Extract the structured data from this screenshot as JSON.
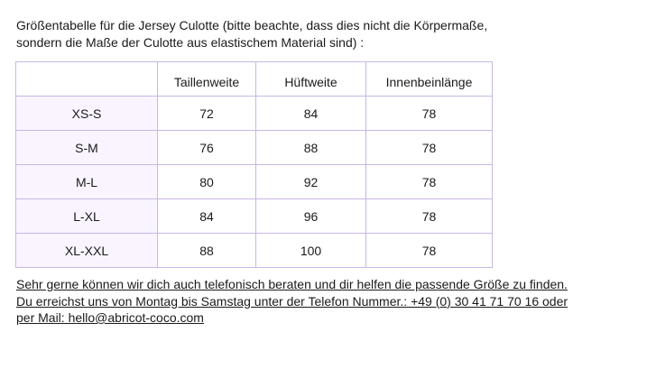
{
  "intro": {
    "line1": "Größentabelle für die Jersey Culotte  (bitte beachte, dass dies nicht die Körpermaße,",
    "line2": "sondern die Maße der Culotte aus elastischem Material sind) :"
  },
  "table": {
    "headers": [
      "",
      "Taillenweite",
      "Hüftweite",
      "Innenbeinlänge"
    ],
    "rows": [
      [
        "XS-S",
        "72",
        "84",
        "78"
      ],
      [
        "S-M",
        "76",
        "88",
        "78"
      ],
      [
        "M-L",
        "80",
        "92",
        "78"
      ],
      [
        "L-XL",
        "84",
        "96",
        "78"
      ],
      [
        "XL-XXL",
        "88",
        "100",
        "78"
      ]
    ]
  },
  "contact": {
    "line1": "Sehr gerne können wir dich auch telefonisch beraten und dir helfen die passende Größe zu finden.",
    "line2": "Du erreichst uns von Montag bis Samstag unter der Telefon Nummer.: +49 (0) 30 41 71 70 16 oder",
    "line3_prefix": "per Mail: ",
    "email": "hello@abricot-coco.com"
  },
  "colors": {
    "border": "#c7b7e6",
    "first_column_bg": "#f9f4ff",
    "text": "#1a1a1a"
  }
}
